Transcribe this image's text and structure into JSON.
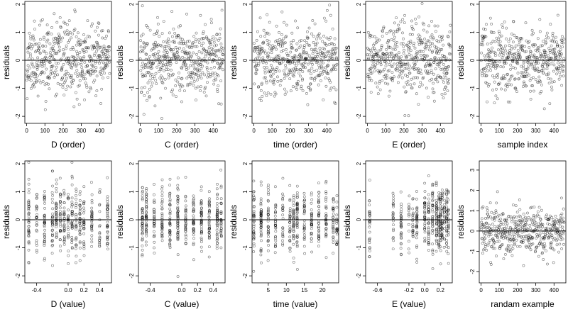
{
  "chart_data": [
    {
      "type": "scatter",
      "xlabel": "D (order)",
      "ylabel": "residuals",
      "xlim": [
        -10,
        465
      ],
      "ylim": [
        -2.25,
        2.1
      ],
      "xticks": [
        0,
        100,
        200,
        300,
        400
      ],
      "yticks": [
        -2,
        -1,
        0,
        1,
        2
      ],
      "reference_line": 0,
      "pattern": "uniform",
      "n": 460,
      "seed": 11
    },
    {
      "type": "scatter",
      "xlabel": "C (order)",
      "ylabel": "residuals",
      "xlim": [
        -10,
        465
      ],
      "ylim": [
        -2.25,
        2.1
      ],
      "xticks": [
        0,
        100,
        200,
        300,
        400
      ],
      "yticks": [
        -2,
        -1,
        0,
        1,
        2
      ],
      "reference_line": 0,
      "pattern": "uniform",
      "n": 460,
      "seed": 22
    },
    {
      "type": "scatter",
      "xlabel": "time (order)",
      "ylabel": "residuals",
      "xlim": [
        -10,
        465
      ],
      "ylim": [
        -2.25,
        2.1
      ],
      "xticks": [
        0,
        100,
        200,
        300,
        400
      ],
      "yticks": [
        -2,
        -1,
        0,
        1,
        2
      ],
      "reference_line": 0,
      "pattern": "uniform",
      "n": 460,
      "seed": 33
    },
    {
      "type": "scatter",
      "xlabel": "E (order)",
      "ylabel": "residuals",
      "xlim": [
        -10,
        465
      ],
      "ylim": [
        -2.25,
        2.1
      ],
      "xticks": [
        0,
        100,
        200,
        300,
        400
      ],
      "yticks": [
        -2,
        -1,
        0,
        1,
        2
      ],
      "reference_line": 0,
      "pattern": "uniform",
      "n": 460,
      "seed": 44
    },
    {
      "type": "scatter",
      "xlabel": "sample index",
      "ylabel": "residuals",
      "xlim": [
        -10,
        465
      ],
      "ylim": [
        -2.25,
        2.1
      ],
      "xticks": [
        0,
        100,
        200,
        300,
        400
      ],
      "yticks": [
        -2,
        -1,
        0,
        1,
        2
      ],
      "reference_line": 0,
      "pattern": "uniform",
      "n": 460,
      "seed": 55
    },
    {
      "type": "scatter",
      "xlabel": "D (value)",
      "ylabel": "residuals",
      "xlim": [
        -0.55,
        0.55
      ],
      "ylim": [
        -2.25,
        2.1
      ],
      "xticks": [
        -0.4,
        0,
        0.2,
        0.4
      ],
      "xtick_labels": [
        "-0.4",
        "0.0",
        "0.2",
        "0.4"
      ],
      "yticks": [
        -2,
        -1,
        0,
        1,
        2
      ],
      "reference_line": 0,
      "pattern": "discrete",
      "x_levels": [
        -0.5,
        -0.4,
        -0.3,
        -0.2,
        -0.15,
        -0.1,
        -0.05,
        0,
        0.05,
        0.1,
        0.15,
        0.2,
        0.3,
        0.4,
        0.5
      ],
      "n": 460,
      "seed": 66
    },
    {
      "type": "scatter",
      "xlabel": "C (value)",
      "ylabel": "residuals",
      "xlim": [
        -0.55,
        0.55
      ],
      "ylim": [
        -2.25,
        2.1
      ],
      "xticks": [
        -0.4,
        0,
        0.2,
        0.4
      ],
      "xtick_labels": [
        "-0.4",
        "0.0",
        "0.2",
        "0.4"
      ],
      "yticks": [
        -2,
        -1,
        0,
        1,
        2
      ],
      "reference_line": 0,
      "pattern": "discrete",
      "x_levels": [
        -0.5,
        -0.45,
        -0.35,
        -0.25,
        -0.15,
        -0.05,
        0.05,
        0.15,
        0.25,
        0.35,
        0.45,
        0.5
      ],
      "n": 460,
      "seed": 77
    },
    {
      "type": "scatter",
      "xlabel": "time (value)",
      "ylabel": "residuals",
      "xlim": [
        0.5,
        24.5
      ],
      "ylim": [
        -2.25,
        2.1
      ],
      "xticks": [
        5,
        10,
        15,
        20
      ],
      "yticks": [
        -2,
        -1,
        0,
        1,
        2
      ],
      "reference_line": 0,
      "pattern": "discrete",
      "x_levels": [
        1,
        3,
        5,
        7,
        9,
        11,
        12,
        13,
        15,
        17,
        19,
        21,
        23,
        24
      ],
      "n": 460,
      "seed": 88
    },
    {
      "type": "scatter",
      "xlabel": "E (value)",
      "ylabel": "residuals",
      "xlim": [
        -0.75,
        0.35
      ],
      "ylim": [
        -2.25,
        2.1
      ],
      "xticks": [
        -0.6,
        -0.2,
        0,
        0.2
      ],
      "xtick_labels": [
        "-0.6",
        "-0.2",
        "0.0",
        "0.2"
      ],
      "yticks": [
        -2,
        -1,
        0,
        1,
        2
      ],
      "reference_line": 0,
      "pattern": "discrete",
      "x_levels": [
        -0.7,
        -0.4,
        -0.3,
        -0.2,
        -0.15,
        -0.1,
        0,
        0.05,
        0.1,
        0.15,
        0.18,
        0.2,
        0.22,
        0.25,
        0.28,
        0.3
      ],
      "n": 460,
      "seed": 99
    },
    {
      "type": "scatter",
      "xlabel": "randam example",
      "ylabel": "residuals",
      "xlim": [
        -10,
        465
      ],
      "ylim": [
        -2.55,
        3.45
      ],
      "xticks": [
        0,
        100,
        200,
        300,
        400
      ],
      "yticks": [
        -2,
        -1,
        0,
        1,
        2,
        3
      ],
      "reference_line": 0,
      "pattern": "uniform",
      "n": 460,
      "seed": 123
    }
  ]
}
